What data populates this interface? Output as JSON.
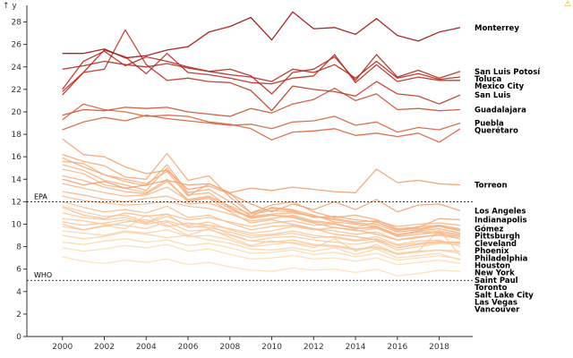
{
  "chart_data": {
    "type": "line",
    "title": "",
    "xlabel": "",
    "ylabel": "y",
    "ylabel_arrow": "↑",
    "xlim": [
      1998.3,
      2019.6
    ],
    "ylim": [
      0,
      29
    ],
    "x_ticks": [
      2000,
      2002,
      2004,
      2006,
      2008,
      2010,
      2012,
      2014,
      2016,
      2018
    ],
    "y_ticks": [
      0,
      2,
      4,
      6,
      8,
      10,
      12,
      14,
      16,
      18,
      20,
      22,
      24,
      26,
      28
    ],
    "reference_lines": [
      {
        "label": "EPA",
        "value": 12
      },
      {
        "label": "WHO",
        "value": 5
      }
    ],
    "x": [
      2000,
      2001,
      2002,
      2003,
      2004,
      2005,
      2006,
      2007,
      2008,
      2009,
      2010,
      2011,
      2012,
      2013,
      2014,
      2015,
      2016,
      2017,
      2018,
      2019
    ],
    "color_scale": {
      "low": "#fde0b8",
      "mid": "#f08a55",
      "high": "#a01010"
    },
    "series": [
      {
        "name": "Monterrey",
        "values": [
          25.2,
          25.2,
          25.6,
          24.8,
          25.0,
          25.5,
          25.8,
          27.1,
          27.6,
          28.4,
          26.4,
          28.9,
          27.4,
          27.5,
          26.9,
          28.3,
          26.8,
          26.3,
          27.1,
          27.5
        ]
      },
      {
        "name": "San Luis Potosí",
        "values": [
          23.8,
          24.1,
          24.5,
          24.2,
          24.0,
          24.3,
          23.9,
          23.6,
          23.8,
          23.2,
          21.6,
          23.5,
          23.8,
          24.9,
          22.8,
          25.1,
          23.1,
          23.7,
          23.0,
          23.6
        ]
      },
      {
        "name": "Toluca",
        "values": [
          22.0,
          24.5,
          25.4,
          24.1,
          24.9,
          24.5,
          24.0,
          23.6,
          23.3,
          23.1,
          22.7,
          23.8,
          23.5,
          24.2,
          23.0,
          24.5,
          23.0,
          23.4,
          22.9,
          23.1
        ]
      },
      {
        "name": "Mexico City",
        "values": [
          21.5,
          23.5,
          25.5,
          24.9,
          23.4,
          25.2,
          23.5,
          23.3,
          23.0,
          22.6,
          22.5,
          23.0,
          23.2,
          25.1,
          22.6,
          24.2,
          22.7,
          23.1,
          22.8,
          22.8
        ]
      },
      {
        "name": "San Luis",
        "values": [
          21.8,
          23.5,
          23.8,
          27.3,
          24.2,
          22.8,
          23.0,
          22.7,
          22.6,
          21.9,
          20.1,
          22.3,
          22.0,
          21.8,
          21.4,
          22.7,
          21.6,
          21.4,
          20.7,
          21.5
        ]
      },
      {
        "name": "Guadalajara",
        "values": [
          19.7,
          20.2,
          20.1,
          20.4,
          20.3,
          20.4,
          20.0,
          19.8,
          19.6,
          20.3,
          19.9,
          20.7,
          21.1,
          22.1,
          21.0,
          21.6,
          20.2,
          20.3,
          20.1,
          20.2
        ]
      },
      {
        "name": "Puebla",
        "values": [
          18.4,
          19.1,
          19.5,
          19.2,
          19.7,
          19.4,
          19.2,
          19.0,
          18.8,
          18.9,
          18.5,
          19.1,
          19.2,
          19.6,
          18.8,
          19.1,
          18.2,
          18.6,
          18.4,
          19.0
        ]
      },
      {
        "name": "Querétaro",
        "values": [
          19.3,
          20.7,
          20.2,
          20.0,
          19.6,
          19.7,
          19.6,
          19.1,
          18.9,
          18.5,
          17.5,
          18.2,
          18.3,
          18.5,
          17.9,
          18.1,
          17.8,
          18.1,
          17.3,
          18.5
        ]
      },
      {
        "name": "Torreon",
        "values": [
          14.0,
          13.5,
          13.8,
          13.2,
          13.5,
          13.9,
          13.5,
          13.6,
          12.8,
          13.2,
          13.0,
          13.3,
          13.1,
          12.9,
          12.8,
          14.9,
          13.7,
          13.9,
          13.6,
          13.5
        ]
      },
      {
        "name": "Los Angeles",
        "values": [
          17.6,
          16.2,
          16.0,
          15.1,
          14.5,
          14.8,
          13.1,
          13.4,
          12.7,
          11.8,
          11.1,
          11.8,
          11.3,
          12.0,
          11.3,
          12.2,
          11.1,
          11.7,
          11.8,
          11.2
        ]
      },
      {
        "name": "Indianapolis",
        "values": [
          16.2,
          15.6,
          15.2,
          14.2,
          14.0,
          16.3,
          13.9,
          14.3,
          12.4,
          11.0,
          11.7,
          12.0,
          11.1,
          10.6,
          10.8,
          10.4,
          9.6,
          9.7,
          10.5,
          10.4
        ]
      },
      {
        "name": "Pittsburgh",
        "values": [
          15.9,
          15.1,
          14.4,
          14.0,
          13.6,
          14.7,
          12.5,
          13.6,
          12.8,
          11.0,
          11.4,
          11.2,
          10.6,
          10.7,
          10.4,
          10.2,
          9.5,
          9.6,
          9.9,
          9.5
        ]
      },
      {
        "name": "Phoenix",
        "values": [
          10.0,
          9.5,
          9.8,
          10.2,
          10.4,
          9.8,
          10.1,
          9.9,
          9.6,
          9.2,
          9.4,
          9.8,
          9.5,
          9.7,
          9.4,
          9.6,
          9.0,
          9.3,
          9.4,
          9.1
        ]
      },
      {
        "name": "Cleveland",
        "values": [
          15.6,
          15.4,
          14.4,
          13.8,
          13.4,
          15.3,
          12.8,
          13.1,
          12.0,
          10.7,
          11.5,
          11.3,
          10.8,
          10.2,
          10.0,
          9.8,
          9.0,
          9.4,
          9.6,
          9.2
        ]
      },
      {
        "name": "Gómez",
        "values": [
          11.5,
          10.8,
          10.5,
          11.0,
          10.7,
          10.9,
          10.4,
          10.6,
          10.2,
          9.8,
          10.1,
          10.3,
          9.9,
          10.0,
          9.7,
          10.2,
          9.4,
          9.8,
          9.9,
          9.6
        ]
      },
      {
        "name": "Philadelphia",
        "values": [
          15.3,
          14.8,
          13.9,
          13.5,
          13.0,
          15.0,
          12.6,
          12.8,
          11.5,
          10.6,
          10.8,
          10.6,
          10.1,
          9.7,
          9.5,
          9.1,
          8.6,
          8.8,
          9.1,
          8.9
        ]
      },
      {
        "name": "Houston",
        "values": [
          12.5,
          12.1,
          11.9,
          11.7,
          11.8,
          12.0,
          11.6,
          11.4,
          10.9,
          10.3,
          10.5,
          10.8,
          10.3,
          10.1,
          9.6,
          9.8,
          9.1,
          9.3,
          9.2,
          8.7
        ]
      },
      {
        "name": "New York",
        "values": [
          14.9,
          14.5,
          13.5,
          13.2,
          12.8,
          14.0,
          12.0,
          12.3,
          11.1,
          10.1,
          10.4,
          10.0,
          9.6,
          9.1,
          8.9,
          8.6,
          7.9,
          8.2,
          8.4,
          8.4
        ]
      },
      {
        "name": "Saint Paul",
        "values": [
          10.5,
          10.3,
          10.0,
          9.9,
          9.6,
          10.2,
          9.4,
          9.5,
          9.0,
          8.5,
          8.8,
          8.9,
          8.6,
          8.4,
          8.2,
          8.5,
          7.7,
          8.0,
          8.3,
          8.2
        ]
      },
      {
        "name": "Toronto",
        "values": [
          11.6,
          11.1,
          10.7,
          10.8,
          10.2,
          10.9,
          9.7,
          9.9,
          9.1,
          8.5,
          8.4,
          8.6,
          8.2,
          8.1,
          7.8,
          8.0,
          7.4,
          7.6,
          7.7,
          7.6
        ]
      },
      {
        "name": "Salt Lake City",
        "values": [
          9.8,
          9.5,
          9.9,
          9.6,
          10.8,
          9.9,
          9.0,
          9.6,
          8.8,
          8.1,
          8.5,
          8.3,
          7.9,
          8.7,
          7.6,
          8.2,
          7.3,
          7.6,
          9.5,
          7.2
        ]
      },
      {
        "name": "Las Vegas",
        "values": [
          9.0,
          8.7,
          8.9,
          9.3,
          9.1,
          8.8,
          9.0,
          8.6,
          8.3,
          7.8,
          7.7,
          7.9,
          7.6,
          7.9,
          7.3,
          7.8,
          7.0,
          7.2,
          7.4,
          6.8
        ]
      },
      {
        "name": "Vancouver",
        "values": [
          7.1,
          6.7,
          6.5,
          6.8,
          6.6,
          6.9,
          6.4,
          6.6,
          6.2,
          5.9,
          5.8,
          6.1,
          5.9,
          6.0,
          5.7,
          6.0,
          5.4,
          5.6,
          5.9,
          5.8
        ]
      },
      {
        "name": "",
        "values": [
          12.9,
          12.6,
          12.2,
          12.0,
          12.3,
          12.5,
          11.8,
          11.9,
          11.2,
          10.7,
          10.9,
          11.0,
          10.7,
          10.5,
          10.2,
          10.3,
          9.8,
          10.0,
          10.1,
          9.9
        ]
      },
      {
        "name": "",
        "values": [
          11.0,
          10.6,
          10.4,
          10.6,
          10.1,
          10.7,
          9.9,
          10.2,
          9.5,
          9.0,
          9.1,
          9.4,
          9.0,
          8.8,
          8.5,
          8.7,
          8.1,
          8.3,
          8.5,
          8.3
        ]
      },
      {
        "name": "",
        "values": [
          9.4,
          9.2,
          9.0,
          9.4,
          9.2,
          9.5,
          8.9,
          9.0,
          8.6,
          8.0,
          8.2,
          8.4,
          8.1,
          8.0,
          7.7,
          7.9,
          7.3,
          7.5,
          7.7,
          7.4
        ]
      },
      {
        "name": "",
        "values": [
          13.6,
          13.2,
          12.8,
          12.5,
          12.6,
          13.3,
          12.1,
          12.4,
          11.4,
          10.5,
          10.8,
          10.7,
          10.2,
          10.0,
          9.6,
          9.7,
          8.9,
          9.1,
          9.3,
          9.0
        ]
      },
      {
        "name": "",
        "values": [
          10.2,
          9.9,
          10.1,
          10.4,
          10.0,
          10.3,
          9.8,
          9.7,
          9.3,
          8.8,
          9.0,
          9.2,
          8.8,
          8.9,
          8.6,
          8.9,
          8.2,
          8.5,
          8.6,
          8.0
        ]
      },
      {
        "name": "",
        "values": [
          8.4,
          8.2,
          8.5,
          8.7,
          8.4,
          8.6,
          8.1,
          8.3,
          7.9,
          7.4,
          7.5,
          7.7,
          7.3,
          7.5,
          7.1,
          7.4,
          6.8,
          7.0,
          7.2,
          6.9
        ]
      },
      {
        "name": "",
        "values": [
          12.0,
          11.5,
          11.1,
          11.3,
          11.0,
          11.6,
          10.6,
          10.8,
          10.1,
          9.5,
          9.8,
          9.9,
          9.6,
          9.4,
          9.1,
          9.3,
          8.6,
          8.9,
          9.0,
          8.7
        ]
      },
      {
        "name": "",
        "values": [
          7.9,
          7.6,
          7.8,
          8.1,
          7.9,
          8.2,
          7.6,
          7.8,
          7.3,
          6.9,
          7.0,
          7.2,
          6.9,
          7.0,
          6.7,
          7.0,
          6.4,
          6.6,
          6.8,
          6.5
        ]
      },
      {
        "name": "",
        "values": [
          14.3,
          13.9,
          13.3,
          12.9,
          12.7,
          13.8,
          12.2,
          12.5,
          11.6,
          10.9,
          11.2,
          11.1,
          10.7,
          10.4,
          10.1,
          10.0,
          9.3,
          9.5,
          9.8,
          9.4
        ]
      }
    ]
  }
}
